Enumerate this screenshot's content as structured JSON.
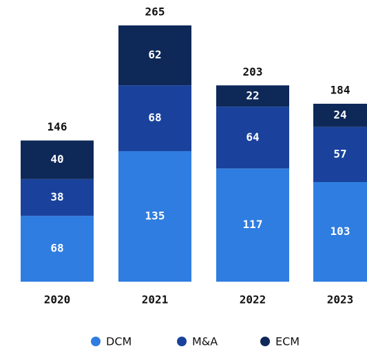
{
  "chart_data": {
    "type": "stacked_bar",
    "categories": [
      "2020",
      "2021",
      "2022",
      "2023"
    ],
    "series": [
      {
        "name": "DCM",
        "color": "#2f7de1",
        "values": [
          68,
          135,
          117,
          103
        ]
      },
      {
        "name": "M&A",
        "color": "#1a429c",
        "values": [
          38,
          68,
          64,
          57
        ]
      },
      {
        "name": "ECM",
        "color": "#0e2858",
        "values": [
          40,
          62,
          22,
          24
        ]
      }
    ],
    "totals": [
      146,
      265,
      203,
      184
    ]
  }
}
